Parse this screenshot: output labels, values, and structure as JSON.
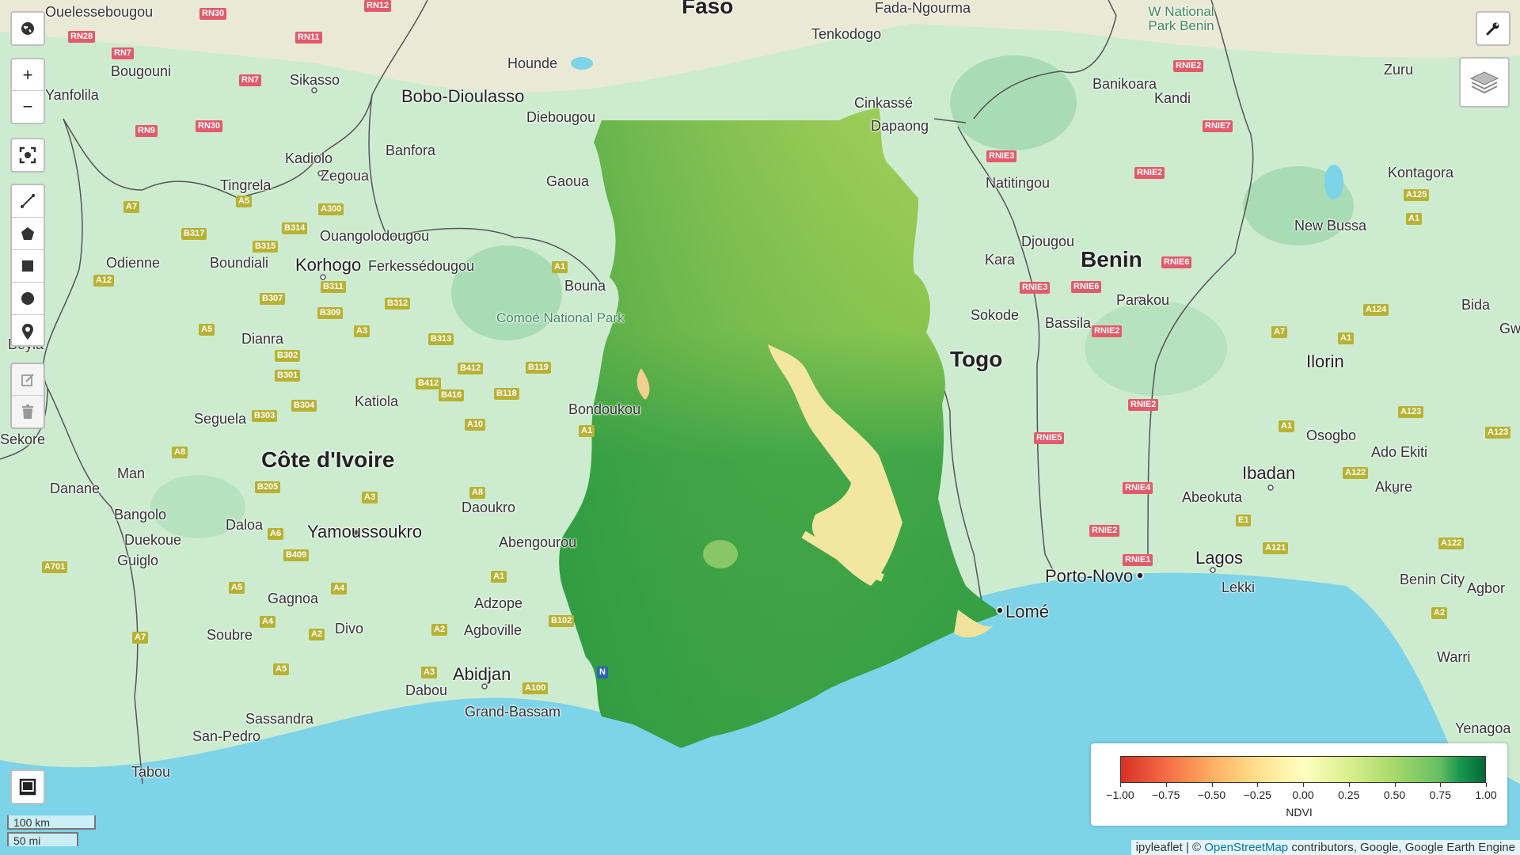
{
  "map": {
    "countries": [
      "Faso",
      "Benin",
      "Togo",
      "Côte d'Ivoire"
    ],
    "cities": [
      "Ouelessebougou",
      "Fada-Ngourma",
      "Tenkodogo",
      "Bougouni",
      "Sikasso",
      "Hounde",
      "Bobo-Dioulasso",
      "Yanfolila",
      "Diebougou",
      "Cinkassé",
      "Dapaong",
      "Banikoara",
      "Kandi",
      "Zuru",
      "Kadiolo",
      "Zegoua",
      "Banfora",
      "Tingrela",
      "Gaoua",
      "Natitingou",
      "Kontagora",
      "Ouangolodougou",
      "Djougou",
      "New Bussa",
      "Odienne",
      "Boundiali",
      "Korhogo",
      "Ferkessédougou",
      "Kara",
      "Bouna",
      "Parakou",
      "Sokode",
      "Bassila",
      "Bida",
      "Dianra",
      "Ilorin",
      "Katiola",
      "Seguela",
      "Bondoukou",
      "Osogbo",
      "Ado Ekiti",
      "Man",
      "Danane",
      "Ibadan",
      "Daoukro",
      "Abeokuta",
      "Akure",
      "Bangolo",
      "Daloa",
      "Duekoue",
      "Yamoussoukro",
      "Abengourou",
      "Guiglo",
      "Lagos",
      "Porto-Novo",
      "Lekki",
      "Lomé",
      "Benin City",
      "Agbor",
      "Gagnoa",
      "Adzope",
      "Soubre",
      "Divo",
      "Agboville",
      "Warri",
      "Abidjan",
      "Dabou",
      "Sassandra",
      "Grand-Bassam",
      "Yenagoa",
      "San-Pedro",
      "Tabou",
      "Sekore",
      "Beyla",
      "Gw"
    ],
    "parks": {
      "comoe": "Comoé National Park",
      "wnational": "W National Park Benin"
    },
    "roads": [
      "RN30",
      "RN12",
      "RN28",
      "RN7",
      "RN11",
      "RN9",
      "RN30",
      "RN7",
      "A7",
      "A5",
      "B317",
      "B314",
      "A300",
      "B315",
      "A12",
      "B311",
      "B307",
      "B312",
      "A5",
      "B309",
      "A3",
      "B313",
      "B302",
      "B301",
      "B412",
      "B119",
      "B412",
      "B416",
      "B118",
      "B304",
      "B303",
      "A10",
      "A1",
      "A8",
      "B205",
      "A3",
      "A8",
      "A6",
      "B409",
      "A5",
      "A4",
      "A4",
      "A2",
      "A2",
      "A1",
      "A701",
      "A7",
      "A5",
      "A3",
      "A100",
      "B102",
      "A1",
      "RNIE2",
      "RNIE7",
      "RNIE3",
      "RNIE2",
      "A125",
      "A1",
      "RNIE6",
      "RNIE3",
      "RNIE6",
      "RNIE2",
      "A124",
      "A7",
      "A1",
      "RNIE2",
      "A123",
      "A1",
      "A123",
      "RNIE5",
      "RNIE4",
      "A122",
      "E1",
      "RNIE2",
      "RNIE1",
      "A121",
      "A122",
      "A2",
      "N"
    ],
    "dataset_area": "Ghana"
  },
  "controls": {
    "globe_icon": "globe-icon",
    "zoom_in": "+",
    "zoom_out": "−",
    "fullscreen_icon": "fullscreen-icon",
    "draw_tools": [
      "polyline-icon",
      "polygon-icon",
      "rectangle-icon",
      "circle-icon",
      "marker-icon"
    ],
    "edit_tools": [
      "edit-icon",
      "trash-icon"
    ],
    "toolbar_icon": "wrench-icon",
    "layers_icon": "layers-icon",
    "inspector_icon": "inspector-icon"
  },
  "scale": {
    "km": "100 km",
    "mi": "50 mi"
  },
  "legend": {
    "title": "NDVI",
    "ticks": [
      "−1.00",
      "−0.75",
      "−0.50",
      "−0.25",
      "0.00",
      "0.25",
      "0.50",
      "0.75",
      "1.00"
    ],
    "min": -1.0,
    "max": 1.0,
    "palette": [
      "#d73027",
      "#f46d43",
      "#fdae61",
      "#fee08b",
      "#ffffbf",
      "#d9ef8b",
      "#a6d96a",
      "#66bd63",
      "#1a9850",
      "#006837"
    ]
  },
  "attribution": {
    "prefix": "ipyleaflet | © ",
    "link": "OpenStreetMap",
    "suffix": " contributors, Google, Google Earth Engine"
  },
  "colors": {
    "land": "#cdeccf",
    "water": "#7dd3e8",
    "border": "#555555"
  }
}
